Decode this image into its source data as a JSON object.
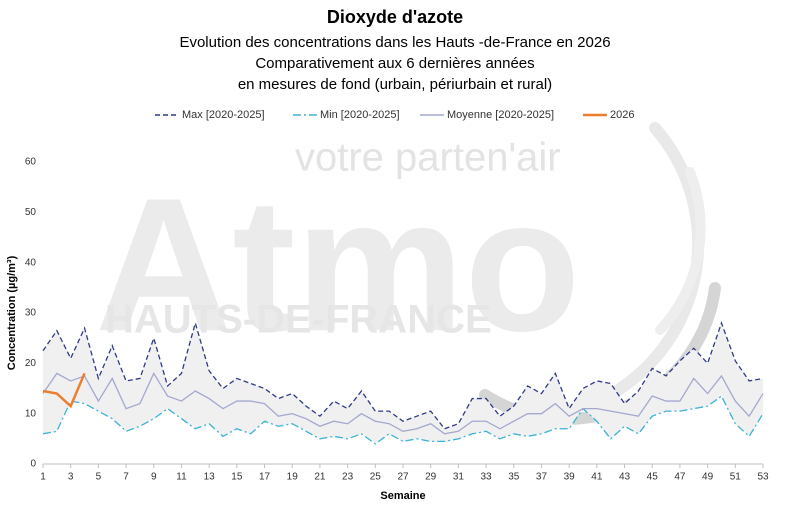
{
  "chart_data": {
    "type": "line",
    "title": "Dioxyde d'azote",
    "subtitle": [
      "Evolution des concentrations dans les Hauts -de-France en 2026",
      "Comparativement aux 6 dernières années",
      "en mesures de fond (urbain, périurbain et rural)"
    ],
    "watermark": [
      "votre parten'air",
      "Atmo",
      "HAUTS-DE-FRANCE"
    ],
    "x_label": "Semaine",
    "y_label": "Concentration (µg/m³)",
    "x": [
      1,
      2,
      3,
      4,
      5,
      6,
      7,
      8,
      9,
      10,
      11,
      12,
      13,
      14,
      15,
      16,
      17,
      18,
      19,
      20,
      21,
      22,
      23,
      24,
      25,
      26,
      27,
      28,
      29,
      30,
      31,
      32,
      33,
      34,
      35,
      36,
      37,
      38,
      39,
      40,
      41,
      42,
      43,
      44,
      45,
      46,
      47,
      48,
      49,
      50,
      51,
      52,
      53
    ],
    "series": [
      {
        "name": "Max [2020-2025]",
        "color": "#2e3a87",
        "dash": "5,3",
        "values": [
          22.5,
          26.5,
          21,
          27,
          17,
          23.5,
          16.5,
          17,
          25,
          15.5,
          18,
          28,
          18.5,
          15,
          17,
          16,
          15,
          13,
          14,
          11.5,
          9.5,
          12.5,
          11,
          14.5,
          10.5,
          10.5,
          8.5,
          9.5,
          10.5,
          7,
          8,
          13,
          13,
          9.5,
          11.5,
          15.5,
          14,
          18,
          11,
          15,
          16.5,
          16,
          12,
          14.5,
          19,
          17.5,
          20.5,
          23,
          20,
          28,
          20.5,
          16.5,
          17
        ]
      },
      {
        "name": "Min [2020-2025]",
        "color": "#3bb3d6",
        "dash": "8,3,2,3",
        "values": [
          6,
          6.5,
          12.5,
          12,
          10.5,
          9,
          6.5,
          7.5,
          9,
          11,
          9,
          7,
          8,
          5.5,
          7,
          6,
          8.5,
          7.5,
          8,
          6.5,
          5,
          5.5,
          5,
          6,
          4,
          6,
          4.5,
          5,
          4.5,
          4.5,
          5,
          6,
          6.5,
          5,
          6,
          5.5,
          6,
          7,
          7,
          11,
          8.5,
          5,
          7.5,
          6,
          9.5,
          10.5,
          10.5,
          11,
          11.5,
          13.5,
          8,
          5.5,
          10
        ]
      },
      {
        "name": "Moyenne [2020-2025]",
        "color": "#a3a8cf",
        "dash": "",
        "values": [
          14,
          18,
          16.5,
          17.5,
          12.5,
          17,
          11,
          12,
          18,
          13.5,
          12.5,
          14.5,
          13,
          11,
          12.5,
          12.5,
          12,
          9.5,
          10,
          9,
          7.5,
          8.5,
          8,
          10,
          8.5,
          8,
          6.5,
          7,
          8,
          6,
          6.5,
          8.5,
          8.5,
          7,
          8.5,
          10,
          10,
          12,
          9.5,
          11,
          11,
          10.5,
          10,
          9.5,
          13.5,
          12.5,
          12.5,
          17,
          14,
          17.5,
          12.5,
          9.5,
          14
        ]
      },
      {
        "name": "2026",
        "color": "#ed7d31",
        "dash": "",
        "values": [
          14.5,
          14,
          11.5,
          18,
          null,
          null,
          null,
          null,
          null,
          null,
          null,
          null,
          null,
          null,
          null,
          null,
          null,
          null,
          null,
          null,
          null,
          null,
          null,
          null,
          null,
          null,
          null,
          null,
          null,
          null,
          null,
          null,
          null,
          null,
          null,
          null,
          null,
          null,
          null,
          null,
          null,
          null,
          null,
          null,
          null,
          null,
          null,
          null,
          null,
          null,
          null,
          null,
          null
        ]
      }
    ],
    "band_fill": "#f0f0f0",
    "xlim": [
      1,
      53
    ],
    "xticks": [
      1,
      3,
      5,
      7,
      9,
      11,
      13,
      15,
      17,
      19,
      21,
      23,
      25,
      27,
      29,
      31,
      33,
      35,
      37,
      39,
      41,
      43,
      45,
      47,
      49,
      51,
      53
    ],
    "ylim": [
      0,
      60
    ],
    "yticks": [
      0,
      10,
      20,
      30,
      40,
      50,
      60
    ],
    "grid": false,
    "legend": "top"
  }
}
